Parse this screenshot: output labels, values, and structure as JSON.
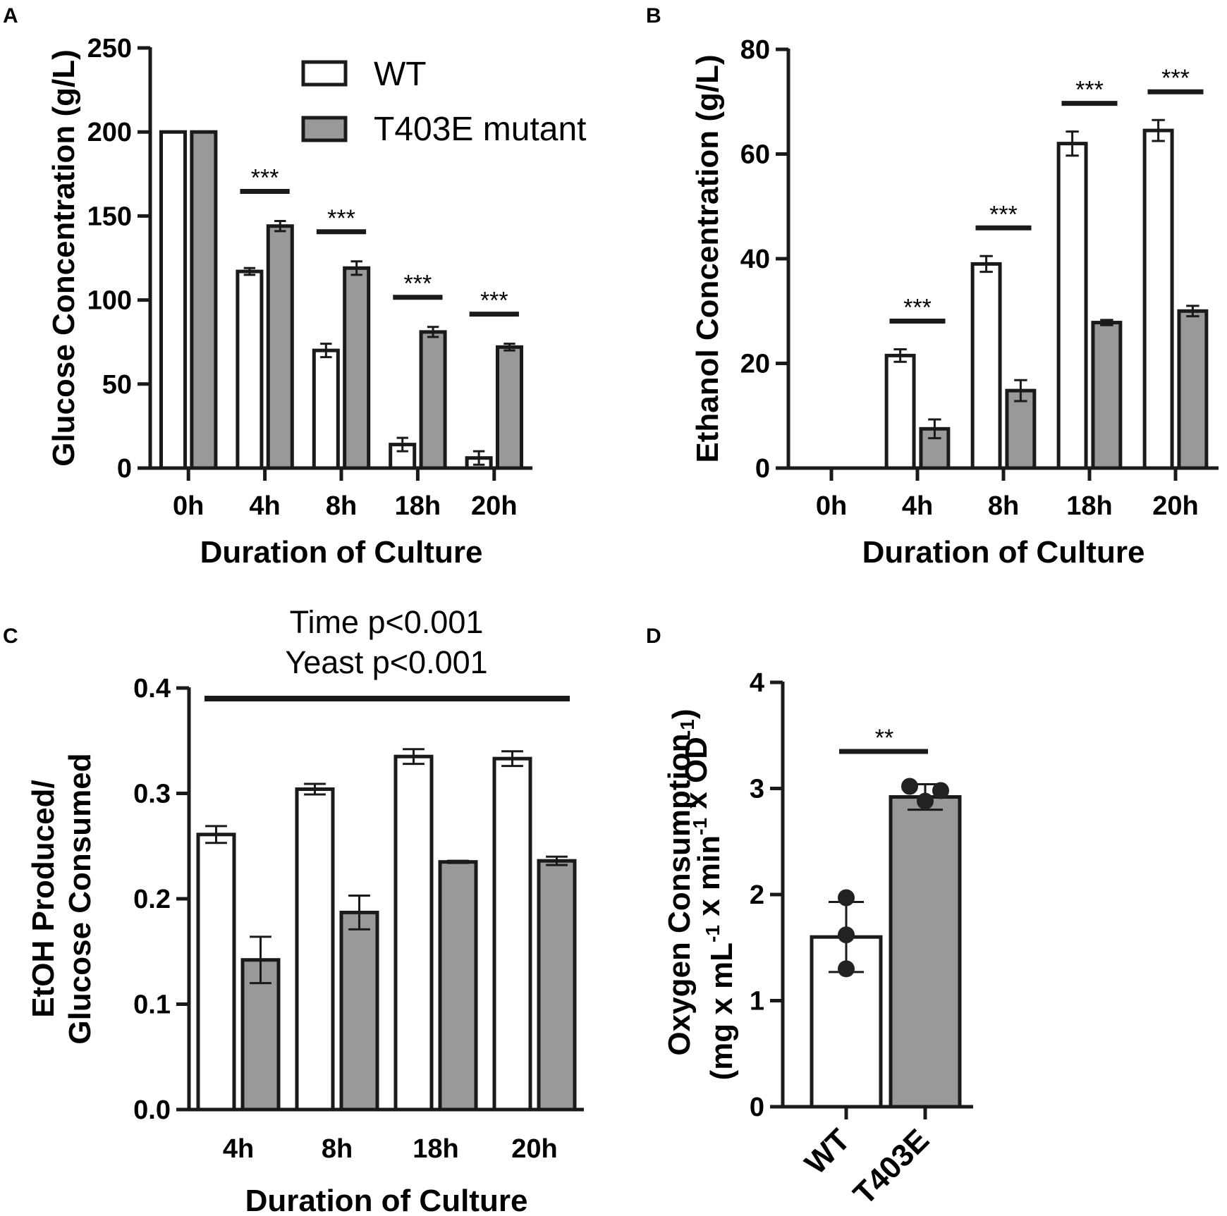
{
  "colors": {
    "wt": "#ffffff",
    "mutant": "#999999",
    "stroke": "#1a1a1a"
  },
  "legend": {
    "wt": "WT",
    "mutant": "T403E mutant"
  },
  "chart_data": [
    {
      "panel": "A",
      "type": "bar",
      "title": "",
      "xlabel": "Duration of Culture",
      "ylabel": "Glucose Concentration (g/L)",
      "ylim": [
        0,
        250
      ],
      "yticks": [
        "0",
        "50",
        "100",
        "150",
        "200",
        "250"
      ],
      "categories": [
        "0h",
        "4h",
        "8h",
        "18h",
        "20h"
      ],
      "series": [
        {
          "name": "WT",
          "values": [
            200,
            117,
            70,
            14,
            6
          ],
          "errors": [
            0,
            2,
            4,
            4,
            4
          ]
        },
        {
          "name": "T403E mutant",
          "values": [
            200,
            144,
            119,
            81,
            72
          ],
          "errors": [
            0,
            3,
            4,
            3,
            2
          ]
        }
      ],
      "significance": [
        {
          "category": "4h",
          "label": "***"
        },
        {
          "category": "8h",
          "label": "***"
        },
        {
          "category": "18h",
          "label": "***"
        },
        {
          "category": "20h",
          "label": "***"
        }
      ],
      "legend_position": "top-right"
    },
    {
      "panel": "B",
      "type": "bar",
      "title": "",
      "xlabel": "Duration of Culture",
      "ylabel": "Ethanol Concentration (g/L)",
      "ylim": [
        0,
        80
      ],
      "yticks": [
        "0",
        "20",
        "40",
        "60",
        "80"
      ],
      "categories": [
        "0h",
        "4h",
        "8h",
        "18h",
        "20h"
      ],
      "series": [
        {
          "name": "WT",
          "values": [
            0,
            21.5,
            39,
            62,
            64.5
          ],
          "errors": [
            0,
            1.2,
            1.5,
            2.3,
            2.0
          ]
        },
        {
          "name": "T403E mutant",
          "values": [
            0,
            7.5,
            14.8,
            27.8,
            30
          ],
          "errors": [
            0,
            1.8,
            2.0,
            0.5,
            1.0
          ]
        }
      ],
      "significance": [
        {
          "category": "4h",
          "label": "***"
        },
        {
          "category": "8h",
          "label": "***"
        },
        {
          "category": "18h",
          "label": "***"
        },
        {
          "category": "20h",
          "label": "***"
        }
      ]
    },
    {
      "panel": "C",
      "type": "bar",
      "title": "",
      "annotation": [
        "Time p<0.001",
        "Yeast p<0.001"
      ],
      "xlabel": "Duration of Culture",
      "ylabel": [
        "EtOH Produced/",
        "Glucose Consumed"
      ],
      "ylim": [
        0,
        0.4
      ],
      "yticks": [
        "0.0",
        "0.1",
        "0.2",
        "0.3",
        "0.4"
      ],
      "categories": [
        "4h",
        "8h",
        "18h",
        "20h"
      ],
      "series": [
        {
          "name": "WT",
          "values": [
            0.261,
            0.304,
            0.335,
            0.333
          ],
          "errors": [
            0.008,
            0.005,
            0.007,
            0.007
          ]
        },
        {
          "name": "T403E mutant",
          "values": [
            0.142,
            0.187,
            0.235,
            0.236
          ],
          "errors": [
            0.022,
            0.016,
            0.001,
            0.004
          ]
        }
      ]
    },
    {
      "panel": "D",
      "type": "bar",
      "title": "",
      "xlabel": "",
      "ylabel": [
        "Oxygen Consumption",
        "(mg x mL-1 x min-1 x OD-1)"
      ],
      "ylabel_parts": [
        "(mg x mL",
        "-1",
        " x min",
        "-1",
        " x OD",
        "-1",
        ")"
      ],
      "ylim": [
        0,
        4
      ],
      "yticks": [
        "0",
        "1",
        "2",
        "3",
        "4"
      ],
      "categories": [
        "WT",
        "T403E"
      ],
      "values": [
        1.6,
        2.92
      ],
      "errors": [
        0.33,
        0.12
      ],
      "points": [
        [
          1.97,
          1.62,
          1.3
        ],
        [
          3.02,
          2.98,
          2.88
        ]
      ],
      "significance": [
        {
          "between": [
            "WT",
            "T403E"
          ],
          "label": "**"
        }
      ]
    }
  ]
}
